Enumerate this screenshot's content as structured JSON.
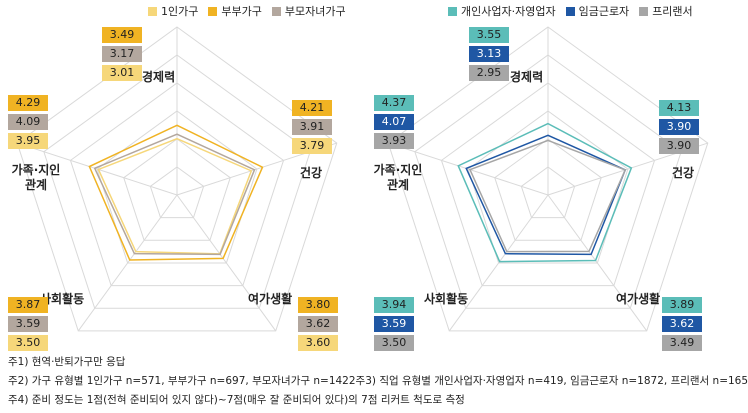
{
  "chart_data": [
    {
      "type": "radar",
      "axes": [
        "경제력",
        "건강",
        "여가생활",
        "사회활동",
        "가족·지인 관계"
      ],
      "rlim": [
        1,
        7
      ],
      "series": [
        {
          "name": "1인가구",
          "color": "#F6D77A",
          "values": [
            3.01,
            3.79,
            3.6,
            3.5,
            3.95
          ],
          "labels": [
            "3.01",
            "3.79",
            "3.60",
            "3.50",
            "3.95"
          ]
        },
        {
          "name": "부부가구",
          "color": "#F0B323",
          "values": [
            3.49,
            4.21,
            3.8,
            3.87,
            4.29
          ],
          "labels": [
            "3.49",
            "4.21",
            "3.80",
            "3.87",
            "4.29"
          ]
        },
        {
          "name": "부모자녀가구",
          "color": "#B3A79E",
          "values": [
            3.17,
            3.91,
            3.62,
            3.59,
            4.09
          ],
          "labels": [
            "3.17",
            "3.91",
            "3.62",
            "3.59",
            "4.09"
          ]
        }
      ]
    },
    {
      "type": "radar",
      "axes": [
        "경제력",
        "건강",
        "여가생활",
        "사회활동",
        "가족·지인 관계"
      ],
      "rlim": [
        1,
        7
      ],
      "series": [
        {
          "name": "개인사업자·자영업자",
          "color": "#5BBDB8",
          "values": [
            3.55,
            4.13,
            3.89,
            3.94,
            4.37
          ],
          "labels": [
            "3.55",
            "4.13",
            "3.89",
            "3.94",
            "4.37"
          ]
        },
        {
          "name": "임금근로자",
          "color": "#1F57A4",
          "values": [
            3.13,
            3.9,
            3.62,
            3.59,
            4.07
          ],
          "labels": [
            "3.13",
            "3.90",
            "3.62",
            "3.59",
            "4.07"
          ]
        },
        {
          "name": "프리랜서",
          "color": "#A6A6A6",
          "values": [
            2.95,
            3.9,
            3.49,
            3.5,
            3.93
          ],
          "labels": [
            "2.95",
            "3.90",
            "3.49",
            "3.50",
            "3.93"
          ]
        }
      ]
    }
  ],
  "axis_labels": {
    "economy": "경제력",
    "health": "건강",
    "leisure": "여가생활",
    "social": "사회활동",
    "family_line1": "가족·지인",
    "family_line2": "관계"
  },
  "notes": {
    "n1": "주1) 현역·반퇴가구만 응답",
    "n2": "주2) 가구 유형별 1인가구 n=571, 부부가구 n=697, 부모자녀가구 n=1422",
    "n3": "주3) 직업 유형별 개인사업자·자영업자 n=419, 임금근로자 n=1872, 프리랜서 n=165",
    "n4": "주4) 준비 정도는 1점(전혀 준비되어 있지 않다)~7점(매우 잘 준비되어 있다)의 7점 리커트 척도로 측정"
  }
}
